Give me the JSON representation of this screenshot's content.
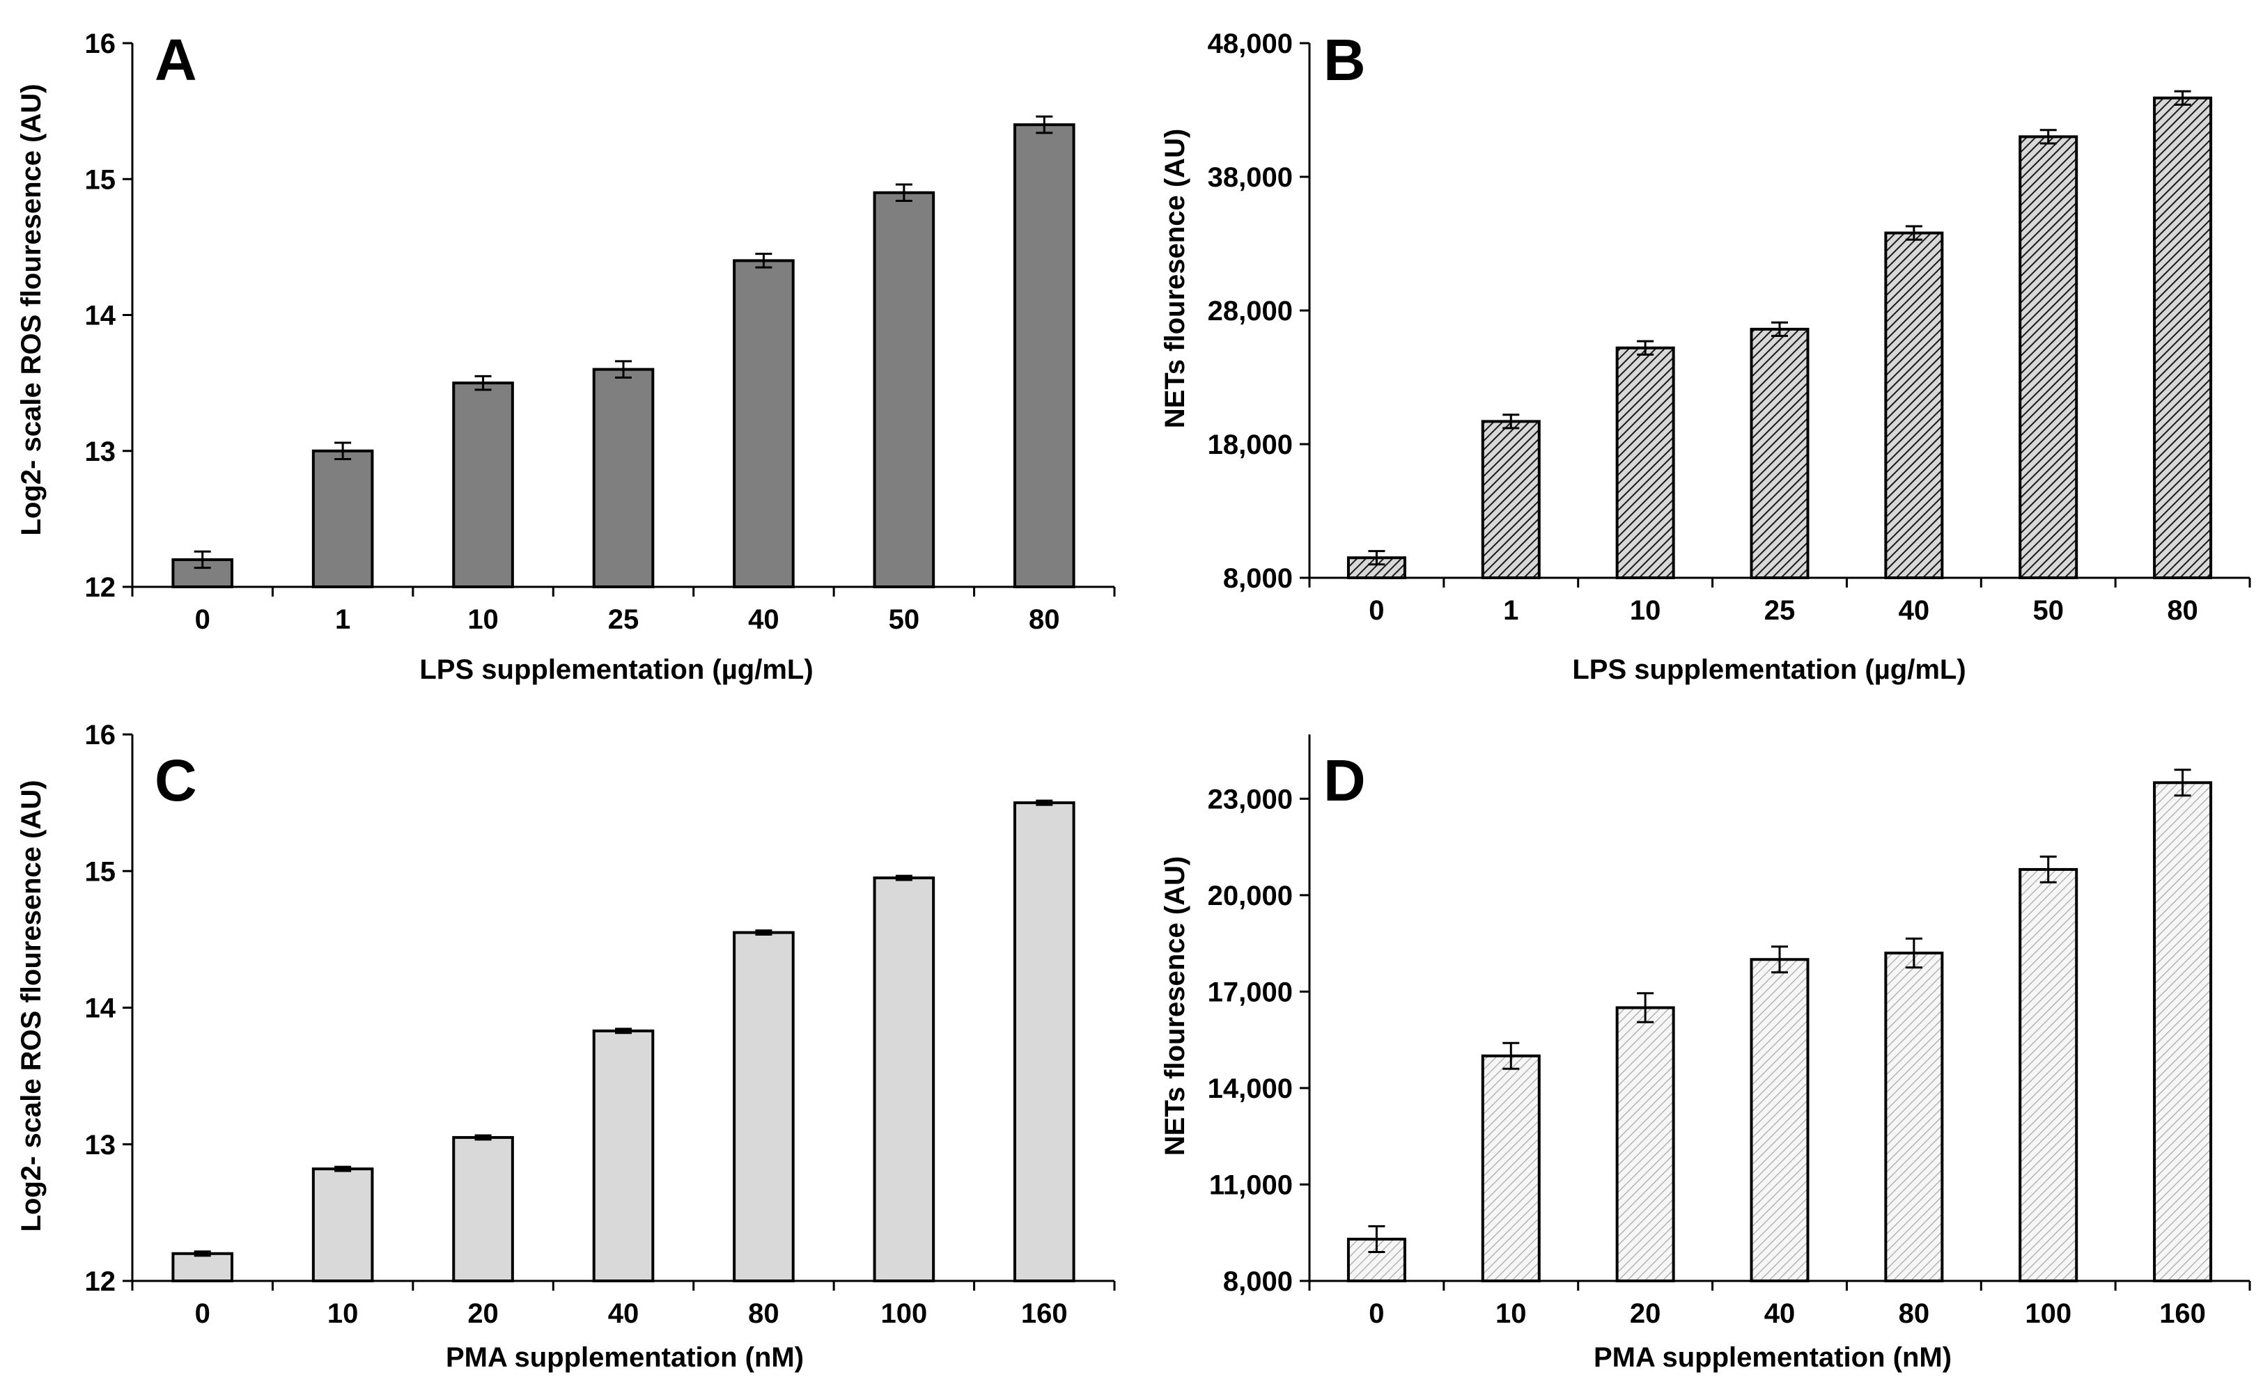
{
  "chart_data": [
    {
      "panel": "A",
      "type": "bar",
      "categories": [
        "0",
        "1",
        "10",
        "25",
        "40",
        "50",
        "80"
      ],
      "values": [
        12.2,
        13.0,
        13.5,
        13.6,
        14.4,
        14.9,
        15.4
      ],
      "errors": [
        0.06,
        0.06,
        0.05,
        0.06,
        0.05,
        0.06,
        0.06
      ],
      "xlabel": "LPS supplementation (µg/mL)",
      "ylabel": "Log2- scale ROS flouresence  (AU)",
      "ylim": [
        12,
        16
      ],
      "yticks": [
        12,
        13,
        14,
        15,
        16
      ],
      "ytick_labels": [
        "12",
        "13",
        "14",
        "15",
        "16"
      ],
      "fill": "#7f7f7f",
      "pattern": "solid"
    },
    {
      "panel": "B",
      "type": "bar",
      "categories": [
        "0",
        "1",
        "10",
        "25",
        "40",
        "50",
        "80"
      ],
      "values": [
        9500,
        19700,
        25200,
        26600,
        33800,
        41000,
        43900
      ],
      "errors": [
        500,
        500,
        500,
        500,
        500,
        500,
        500
      ],
      "xlabel": "LPS supplementation (µg/mL)",
      "ylabel": "NETs flouresence  (AU)",
      "ylim": [
        8000,
        48000
      ],
      "yticks": [
        8000,
        18000,
        28000,
        38000,
        48000
      ],
      "ytick_labels": [
        "8,000",
        "18,000",
        "28,000",
        "38,000",
        "48,000"
      ],
      "fill": "#d8d8d8",
      "pattern": "dense-hatch"
    },
    {
      "panel": "C",
      "type": "bar",
      "categories": [
        "0",
        "10",
        "20",
        "40",
        "80",
        "100",
        "160"
      ],
      "values": [
        12.2,
        12.82,
        13.05,
        13.83,
        14.55,
        14.95,
        15.5
      ],
      "errors": [
        0.015,
        0.015,
        0.015,
        0.015,
        0.015,
        0.015,
        0.015
      ],
      "xlabel": "PMA supplementation (nM)",
      "ylabel": "Log2- scale ROS flouresence  (AU)",
      "ylim": [
        12,
        16
      ],
      "yticks": [
        12,
        13,
        14,
        15,
        16
      ],
      "ytick_labels": [
        "12",
        "13",
        "14",
        "15",
        "16"
      ],
      "fill": "#d9d9d9",
      "pattern": "solid"
    },
    {
      "panel": "D",
      "type": "bar",
      "categories": [
        "0",
        "10",
        "20",
        "40",
        "80",
        "100",
        "160"
      ],
      "values": [
        9300,
        15000,
        16500,
        18000,
        18200,
        20800,
        23500
      ],
      "errors": [
        400,
        400,
        450,
        400,
        450,
        400,
        400
      ],
      "xlabel": "PMA supplementation (nM)",
      "ylabel": "NETs flouresence  (AU)",
      "ylim": [
        8000,
        25000
      ],
      "yticks": [
        8000,
        11000,
        14000,
        17000,
        20000,
        23000
      ],
      "ytick_labels": [
        "8,000",
        "11,000",
        "14,000",
        "17,000",
        "20,000",
        "23,000"
      ],
      "fill": "#f2f2f2",
      "pattern": "light-hatch"
    }
  ]
}
